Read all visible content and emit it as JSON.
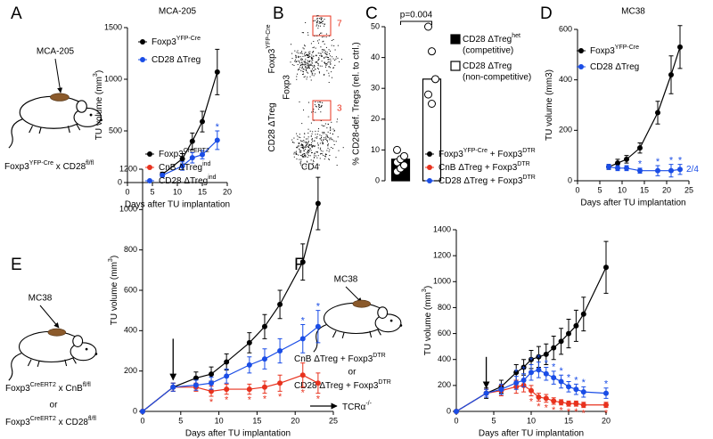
{
  "figure": {
    "A": {
      "letter": "A",
      "tumor": "MCA-205",
      "genotype": [
        "Foxp3",
        "YFP-Cre",
        " x CD28",
        "fl/fl"
      ]
    },
    "B": {
      "letter": "B",
      "rows": [
        [
          "Foxp3",
          "YFP-Cre"
        ],
        [
          "CD28 ΔTreg"
        ]
      ],
      "y_label": "Foxp3",
      "x_label": "CD4",
      "gates": [
        7,
        3
      ]
    },
    "C": {
      "letter": "C"
    },
    "D": {
      "letter": "D"
    },
    "E": {
      "letter": "E",
      "tumor": "MC38",
      "genotype_1": [
        "Foxp3",
        "CreERT2",
        " x CnB",
        "fl/fl"
      ],
      "or": "or",
      "genotype_2": [
        "Foxp3",
        "CreERT2",
        " x CD28",
        "fl/fl"
      ]
    },
    "F": {
      "letter": "F",
      "tumor": "MC38",
      "genotype_1": [
        "CnB ΔTreg + Foxp3",
        "DTR"
      ],
      "or": "or",
      "genotype_2": [
        "CD28 ΔTreg + Foxp3",
        "DTR"
      ],
      "recipient": [
        "TCRα",
        "-/-"
      ]
    }
  },
  "chart_data": [
    {
      "type": "line",
      "title": "MCA-205",
      "x_label": "Days after TU implantation",
      "y_label": [
        "TU volume (mm",
        "3",
        ")"
      ],
      "xlim": [
        0,
        20
      ],
      "xticks": [
        0,
        5,
        10,
        15,
        20
      ],
      "ylim": [
        0,
        1500
      ],
      "yticks": [
        0,
        500,
        1000,
        1500
      ],
      "series": [
        {
          "name": [
            "Foxp3",
            "YFP-Cre"
          ],
          "color": "#000000",
          "x": [
            7,
            11,
            13,
            15,
            18
          ],
          "values": [
            80,
            230,
            400,
            590,
            1070
          ],
          "errors": [
            20,
            50,
            80,
            100,
            220
          ],
          "labels": [
            null,
            null,
            null,
            null,
            null
          ]
        },
        {
          "name": [
            "CD28 ΔTreg"
          ],
          "color": "#1a4de6",
          "x": [
            7,
            11,
            13,
            15,
            18
          ],
          "values": [
            70,
            160,
            240,
            270,
            410
          ],
          "errors": [
            15,
            40,
            50,
            40,
            90
          ],
          "labels": [
            null,
            null,
            null,
            null,
            "*"
          ]
        }
      ]
    },
    {
      "type": "bar",
      "y_label": "% CD28-def. Tregs (rel. to ctrl.)",
      "annotation": "p=0.004",
      "categories": [
        null,
        null
      ],
      "values": [
        7,
        33
      ],
      "colors": [
        "#000000",
        "#ffffff"
      ],
      "points": [
        [
          3,
          4,
          5,
          6,
          7,
          8,
          10
        ],
        [
          50,
          42,
          33,
          28,
          25
        ]
      ],
      "ylim": [
        0,
        50
      ],
      "yticks": [
        0,
        10,
        20,
        30,
        40,
        50
      ],
      "legend": [
        {
          "name": [
            "CD28 ΔTreg",
            "het"
          ],
          "description": "(competitive)"
        },
        {
          "name": [
            "CD28 ΔTreg"
          ],
          "description": "(non-competitive)"
        }
      ]
    },
    {
      "type": "line",
      "title": "MC38",
      "x_label": "Days after TU implantation",
      "y_label": [
        "TU volume (mm3)"
      ],
      "annotation": "2/4",
      "xlim": [
        0,
        25
      ],
      "xticks": [
        0,
        5,
        10,
        15,
        20,
        25
      ],
      "ylim": [
        0,
        600
      ],
      "yticks": [
        0,
        200,
        400,
        600
      ],
      "series": [
        {
          "name": [
            "Foxp3",
            "YFP-Cre"
          ],
          "color": "#000000",
          "x": [
            7,
            9,
            11,
            14,
            18,
            21,
            23
          ],
          "values": [
            55,
            70,
            85,
            130,
            270,
            420,
            530
          ],
          "errors": [
            10,
            15,
            15,
            20,
            45,
            75,
            85
          ],
          "labels": [
            null,
            null,
            null,
            null,
            null,
            null,
            null
          ]
        },
        {
          "name": [
            "CD28 ΔTreg"
          ],
          "color": "#1a4de6",
          "x": [
            7,
            9,
            11,
            14,
            18,
            21,
            23
          ],
          "values": [
            55,
            50,
            50,
            40,
            40,
            40,
            45
          ],
          "errors": [
            10,
            10,
            10,
            10,
            20,
            25,
            20
          ],
          "labels": [
            null,
            null,
            null,
            "*",
            "*",
            "*",
            "*"
          ]
        }
      ]
    },
    {
      "type": "line",
      "x_label": "Days after TU implantation",
      "y_label": [
        "TU volume (mm",
        "3",
        ")"
      ],
      "arrows": [
        4
      ],
      "xlim": [
        0,
        25
      ],
      "xticks": [
        0,
        5,
        10,
        15,
        20,
        25
      ],
      "ylim": [
        0,
        1200
      ],
      "yticks": [
        0,
        200,
        400,
        600,
        800,
        1000,
        1200
      ],
      "series": [
        {
          "name": [
            "Foxp3",
            "CreERT2"
          ],
          "color": "#000000",
          "x": [
            0,
            4,
            7,
            9,
            11,
            14,
            16,
            18,
            21,
            23
          ],
          "values": [
            0,
            120,
            165,
            185,
            245,
            340,
            420,
            530,
            740,
            1030
          ],
          "errors": [
            0,
            20,
            30,
            35,
            40,
            50,
            60,
            70,
            90,
            130
          ],
          "labels": [
            null,
            null,
            null,
            null,
            null,
            null,
            null,
            null,
            null,
            null
          ]
        },
        {
          "name": [
            "CnB ΔTreg",
            "ind"
          ],
          "color": "#e8321e",
          "x": [
            0,
            4,
            7,
            9,
            11,
            14,
            16,
            18,
            21,
            23
          ],
          "values": [
            0,
            120,
            120,
            100,
            110,
            110,
            120,
            140,
            180,
            140
          ],
          "errors": [
            0,
            20,
            20,
            25,
            25,
            25,
            30,
            40,
            60,
            50
          ],
          "labels": [
            null,
            null,
            null,
            "*",
            "*",
            "*",
            "*",
            "*",
            "*",
            "*"
          ],
          "label_side": "below"
        },
        {
          "name": [
            "CD28 ΔTreg",
            "ind"
          ],
          "color": "#1a4de6",
          "x": [
            0,
            4,
            7,
            9,
            11,
            14,
            16,
            18,
            21,
            23
          ],
          "values": [
            0,
            120,
            130,
            140,
            175,
            230,
            260,
            300,
            360,
            420
          ],
          "errors": [
            0,
            20,
            25,
            30,
            35,
            40,
            50,
            60,
            70,
            80
          ],
          "labels": [
            null,
            null,
            null,
            null,
            null,
            null,
            null,
            null,
            "*",
            "*"
          ]
        }
      ]
    },
    {
      "type": "line",
      "x_label": "Days after TU implantation",
      "y_label": [
        "TU volume (mm",
        "3",
        ")"
      ],
      "arrows": [
        4
      ],
      "xlim": [
        0,
        20
      ],
      "xticks": [
        0,
        5,
        10,
        15,
        20
      ],
      "ylim": [
        0,
        1400
      ],
      "yticks": [
        0,
        200,
        400,
        600,
        800,
        1000,
        1200,
        1400
      ],
      "series": [
        {
          "name": [
            "Foxp3",
            "YFP-Cre",
            " + Foxp3",
            "DTR"
          ],
          "color": "#000000",
          "x": [
            0,
            4,
            6,
            8,
            9,
            10,
            11,
            12,
            13,
            14,
            15,
            16,
            17,
            20
          ],
          "values": [
            0,
            140,
            190,
            300,
            340,
            400,
            420,
            440,
            490,
            540,
            600,
            660,
            750,
            1110
          ],
          "errors": [
            0,
            40,
            50,
            60,
            60,
            70,
            80,
            80,
            90,
            100,
            110,
            120,
            130,
            200
          ],
          "labels": [
            null,
            null,
            null,
            null,
            null,
            null,
            null,
            null,
            null,
            null,
            null,
            null,
            null,
            null
          ]
        },
        {
          "name": [
            "CnB ΔTreg + Foxp3",
            "DTR"
          ],
          "color": "#e8321e",
          "x": [
            0,
            4,
            6,
            8,
            9,
            10,
            11,
            12,
            13,
            14,
            15,
            16,
            17,
            20
          ],
          "values": [
            0,
            140,
            160,
            190,
            200,
            160,
            110,
            100,
            80,
            70,
            60,
            60,
            50,
            50
          ],
          "errors": [
            0,
            30,
            40,
            50,
            50,
            40,
            30,
            30,
            25,
            20,
            20,
            20,
            20,
            20
          ],
          "labels": [
            null,
            null,
            null,
            null,
            null,
            "*",
            "*",
            "*",
            "*",
            "*",
            "*",
            "*",
            "*",
            "*"
          ],
          "label_side": "below"
        },
        {
          "name": [
            "CD28 ΔTreg + Foxp3",
            "DTR"
          ],
          "color": "#1a4de6",
          "x": [
            0,
            4,
            6,
            8,
            9,
            10,
            11,
            12,
            13,
            14,
            15,
            16,
            17,
            20
          ],
          "values": [
            0,
            140,
            170,
            220,
            240,
            300,
            320,
            290,
            260,
            230,
            190,
            170,
            150,
            140
          ],
          "errors": [
            0,
            30,
            40,
            50,
            50,
            60,
            60,
            50,
            50,
            50,
            40,
            40,
            40,
            40
          ],
          "labels": [
            null,
            null,
            null,
            "*",
            "*",
            "*",
            "*",
            "*",
            "*",
            "*",
            "*",
            "*",
            "*",
            "*"
          ]
        }
      ]
    }
  ]
}
